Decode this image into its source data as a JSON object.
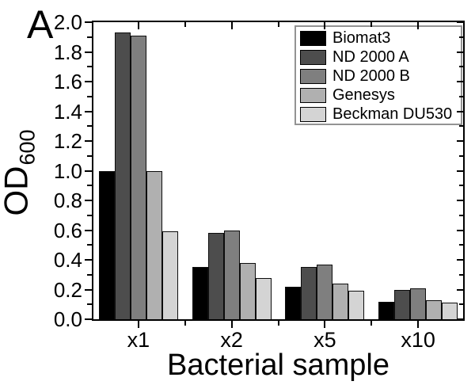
{
  "chart_data": {
    "type": "bar",
    "panel_label": "A",
    "title": "",
    "xlabel": "Bacterial sample",
    "ylabel": "OD",
    "ylabel_sub": "600",
    "categories": [
      "x1",
      "x2",
      "x5",
      "x10"
    ],
    "series": [
      {
        "name": "Biomat3",
        "color": "#000000",
        "values": [
          1.0,
          0.35,
          0.22,
          0.12
        ]
      },
      {
        "name": "ND 2000 A",
        "color": "#4d4d4d",
        "values": [
          1.93,
          0.58,
          0.35,
          0.2
        ]
      },
      {
        "name": "ND 2000 B",
        "color": "#7f7f7f",
        "values": [
          1.91,
          0.6,
          0.37,
          0.21
        ]
      },
      {
        "name": "Genesys",
        "color": "#b0b0b0",
        "values": [
          1.0,
          0.38,
          0.24,
          0.13
        ]
      },
      {
        "name": "Beckman DU530",
        "color": "#d4d4d4",
        "values": [
          0.59,
          0.28,
          0.19,
          0.11
        ]
      }
    ],
    "ylim": [
      0,
      2.0
    ],
    "ytick_step": 0.2,
    "yminor_step": 0.1,
    "ytick_labels": [
      "0.0",
      "0.2",
      "0.4",
      "0.6",
      "0.8",
      "1.0",
      "1.2",
      "1.4",
      "1.6",
      "1.8",
      "2.0"
    ],
    "grid": false,
    "legend_position": "top-right",
    "axis_color": "#000000",
    "background_color": "#ffffff"
  }
}
